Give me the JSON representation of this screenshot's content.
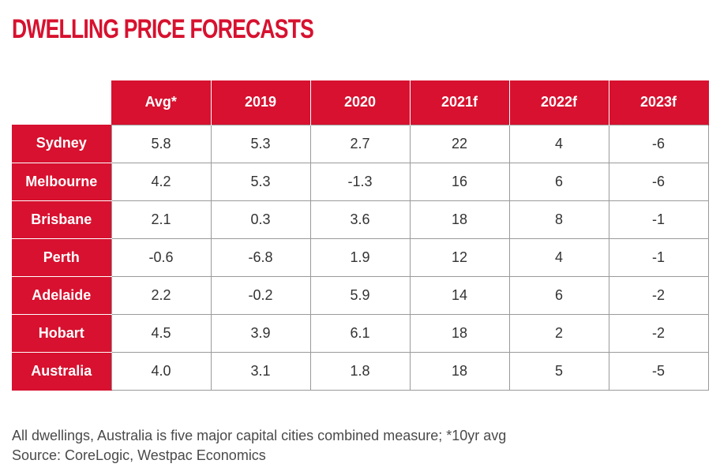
{
  "title": "DWELLING PRICE FORECASTS",
  "chart_data": {
    "type": "table",
    "title": "DWELLING PRICE FORECASTS",
    "columns": [
      "Avg*",
      "2019",
      "2020",
      "2021f",
      "2022f",
      "2023f"
    ],
    "rows": [
      {
        "label": "Sydney",
        "values": [
          "5.8",
          "5.3",
          "2.7",
          "22",
          "4",
          "-6"
        ]
      },
      {
        "label": "Melbourne",
        "values": [
          "4.2",
          "5.3",
          "-1.3",
          "16",
          "6",
          "-6"
        ]
      },
      {
        "label": "Brisbane",
        "values": [
          "2.1",
          "0.3",
          "3.6",
          "18",
          "8",
          "-1"
        ]
      },
      {
        "label": "Perth",
        "values": [
          "-0.6",
          "-6.8",
          "1.9",
          "12",
          "4",
          "-1"
        ]
      },
      {
        "label": "Adelaide",
        "values": [
          "2.2",
          "-0.2",
          "5.9",
          "14",
          "6",
          "-2"
        ]
      },
      {
        "label": "Hobart",
        "values": [
          "4.5",
          "3.9",
          "6.1",
          "18",
          "2",
          "-2"
        ]
      },
      {
        "label": "Australia",
        "values": [
          "4.0",
          "3.1",
          "1.8",
          "18",
          "5",
          "-5"
        ]
      }
    ]
  },
  "notes": {
    "line1": "All dwellings, Australia is five major capital cities combined measure; *10yr avg",
    "line2": "Source: CoreLogic, Westpac Economics"
  },
  "colors": {
    "accent": "#d7112f",
    "grid": "#9a9a9a",
    "text": "#333333"
  }
}
